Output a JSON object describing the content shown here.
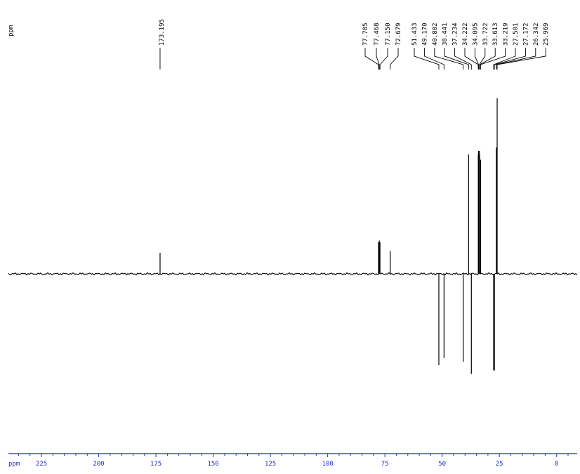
{
  "chart_data": {
    "type": "line",
    "title": "",
    "units_label": "ppm",
    "xlabel": "ppm",
    "ylabel": "",
    "xlim": [
      240,
      -10
    ],
    "x_direction": "reversed",
    "major_ticks": [
      225,
      200,
      175,
      150,
      125,
      100,
      75,
      50,
      25,
      0
    ],
    "peak_labels": [
      {
        "shift": "173.195",
        "value": 173.195
      },
      {
        "shift": "77.785",
        "value": 77.785
      },
      {
        "shift": "77.468",
        "value": 77.468
      },
      {
        "shift": "77.150",
        "value": 77.15
      },
      {
        "shift": "72.679",
        "value": 72.679
      },
      {
        "shift": "51.433",
        "value": 51.433
      },
      {
        "shift": "49.170",
        "value": 49.17
      },
      {
        "shift": "40.802",
        "value": 40.802
      },
      {
        "shift": "38.441",
        "value": 38.441
      },
      {
        "shift": "37.234",
        "value": 37.234
      },
      {
        "shift": "34.222",
        "value": 34.222
      },
      {
        "shift": "34.095",
        "value": 34.095
      },
      {
        "shift": "33.722",
        "value": 33.722
      },
      {
        "shift": "33.613",
        "value": 33.613
      },
      {
        "shift": "33.219",
        "value": 33.219
      },
      {
        "shift": "27.501",
        "value": 27.501
      },
      {
        "shift": "27.172",
        "value": 27.172
      },
      {
        "shift": "26.342",
        "value": 26.342
      },
      {
        "shift": "25.969",
        "value": 25.969
      }
    ],
    "peaks": [
      {
        "x": 173.195,
        "y": 0.12
      },
      {
        "x": 77.785,
        "y": 0.18
      },
      {
        "x": 77.468,
        "y": 0.19
      },
      {
        "x": 77.15,
        "y": 0.18
      },
      {
        "x": 72.679,
        "y": 0.13
      },
      {
        "x": 51.433,
        "y": -0.52
      },
      {
        "x": 49.17,
        "y": -0.48
      },
      {
        "x": 40.802,
        "y": -0.5
      },
      {
        "x": 38.441,
        "y": 0.68
      },
      {
        "x": 37.234,
        "y": -0.57
      },
      {
        "x": 34.222,
        "y": 0.68
      },
      {
        "x": 34.095,
        "y": 0.7
      },
      {
        "x": 33.722,
        "y": 0.7
      },
      {
        "x": 33.613,
        "y": 0.68
      },
      {
        "x": 33.219,
        "y": 0.65
      },
      {
        "x": 27.501,
        "y": -0.55
      },
      {
        "x": 27.172,
        "y": -0.55
      },
      {
        "x": 26.342,
        "y": 0.72
      },
      {
        "x": 25.969,
        "y": 1.0
      }
    ],
    "colors": {
      "trace": "#000000",
      "axis": "#1a2ec8"
    }
  }
}
